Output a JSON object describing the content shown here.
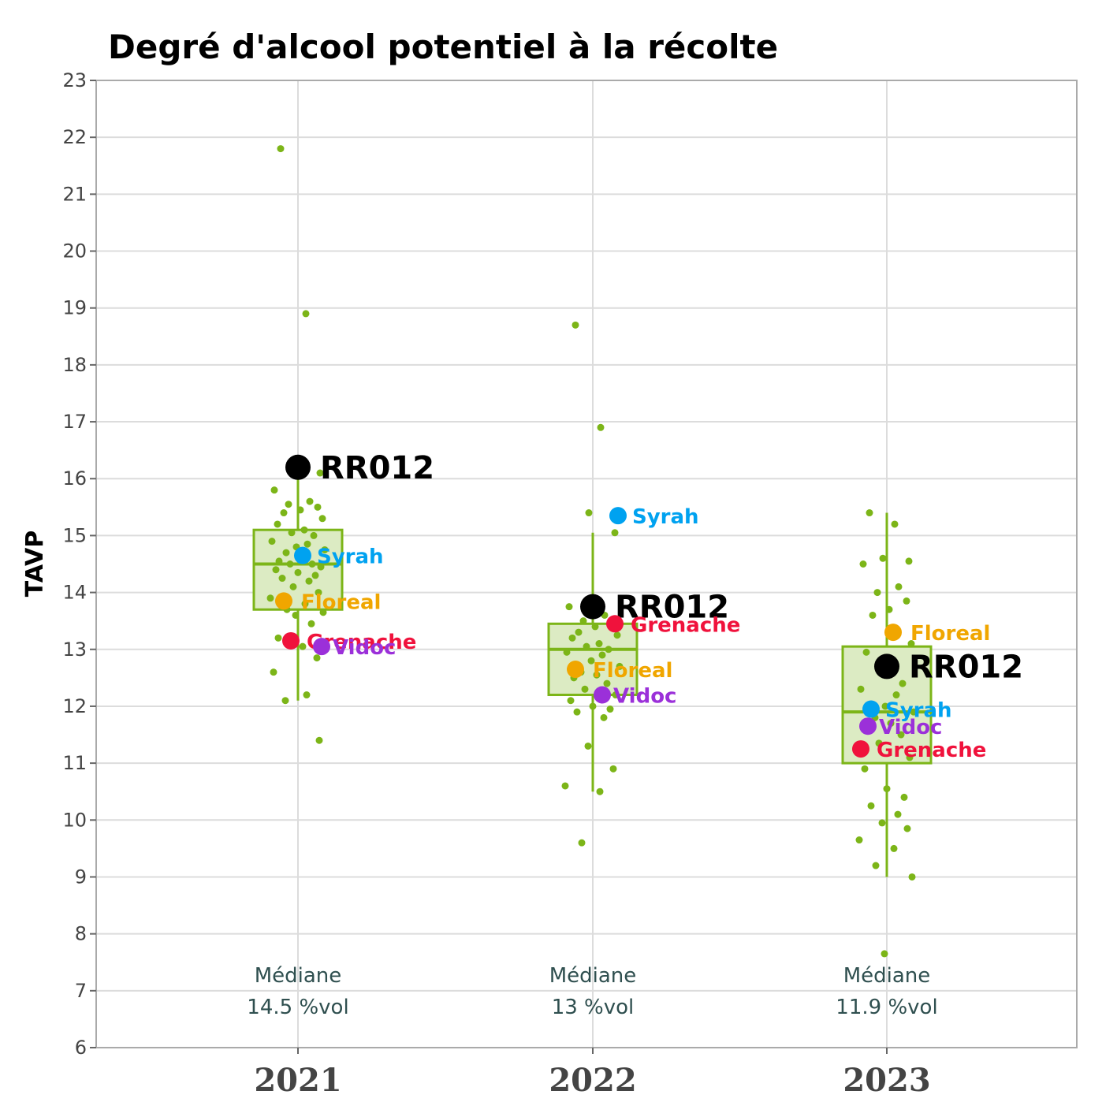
{
  "chart_data": {
    "type": "box",
    "title": "Degré d'alcool potentiel à la récolte",
    "ylabel": "TAVP",
    "xlabel": "",
    "ylim": [
      6,
      23
    ],
    "yticks": [
      "6",
      "7",
      "8",
      "9",
      "10",
      "11",
      "12",
      "13",
      "14",
      "15",
      "16",
      "17",
      "18",
      "19",
      "20",
      "21",
      "22",
      "23"
    ],
    "grid": true,
    "categories": [
      "2021",
      "2022",
      "2023"
    ],
    "median_label": "Médiane",
    "boxes": [
      {
        "category": "2021",
        "q1": 13.7,
        "median": 14.5,
        "q3": 15.1,
        "whisker_low": 12.1,
        "whisker_high": 16.1,
        "median_text": "14.5 %vol"
      },
      {
        "category": "2022",
        "q1": 12.2,
        "median": 13.0,
        "q3": 13.45,
        "whisker_low": 10.5,
        "whisker_high": 15.05,
        "median_text": "13 %vol"
      },
      {
        "category": "2023",
        "q1": 11.0,
        "median": 11.9,
        "q3": 13.05,
        "whisker_low": 9.0,
        "whisker_high": 15.4,
        "median_text": "11.9 %vol"
      }
    ],
    "points": [
      {
        "category": "2021",
        "values": [
          21.8,
          18.9,
          16.3,
          16.1,
          15.8,
          15.6,
          15.55,
          15.5,
          15.45,
          15.4,
          15.3,
          15.2,
          15.1,
          15.05,
          15.0,
          14.9,
          14.85,
          14.8,
          14.75,
          14.7,
          14.6,
          14.55,
          14.5,
          14.5,
          14.45,
          14.4,
          14.35,
          14.3,
          14.25,
          14.2,
          14.1,
          14.0,
          13.9,
          13.8,
          13.7,
          13.65,
          13.6,
          13.45,
          13.2,
          13.05,
          12.85,
          12.6,
          12.2,
          12.1,
          11.4
        ]
      },
      {
        "category": "2022",
        "values": [
          18.7,
          16.9,
          15.4,
          15.05,
          13.75,
          13.6,
          13.5,
          13.45,
          13.4,
          13.3,
          13.25,
          13.2,
          13.1,
          13.05,
          13.0,
          12.95,
          12.9,
          12.8,
          12.7,
          12.6,
          12.55,
          12.5,
          12.4,
          12.3,
          12.2,
          12.1,
          12.0,
          11.95,
          11.9,
          11.8,
          11.3,
          10.9,
          10.6,
          10.5,
          9.6
        ]
      },
      {
        "category": "2023",
        "values": [
          15.4,
          15.2,
          14.6,
          14.55,
          14.5,
          14.1,
          14.0,
          13.85,
          13.7,
          13.6,
          13.1,
          12.95,
          12.7,
          12.6,
          12.4,
          12.3,
          12.2,
          12.0,
          11.9,
          11.8,
          11.7,
          11.6,
          11.5,
          11.35,
          11.1,
          10.9,
          10.55,
          10.4,
          10.25,
          10.1,
          9.95,
          9.85,
          9.65,
          9.5,
          9.2,
          9.0,
          7.65
        ]
      }
    ],
    "highlights": [
      {
        "name": "RR012",
        "color": "#000000",
        "values": {
          "2021": 16.2,
          "2022": 13.75,
          "2023": 12.7
        }
      },
      {
        "name": "Syrah",
        "color": "#00a2f0",
        "values": {
          "2021": 14.65,
          "2022": 15.35,
          "2023": 11.95
        }
      },
      {
        "name": "Floreal",
        "color": "#f0a600",
        "values": {
          "2021": 13.85,
          "2022": 12.65,
          "2023": 13.3
        }
      },
      {
        "name": "Grenache",
        "color": "#f0123c",
        "values": {
          "2021": 13.15,
          "2022": 13.45,
          "2023": 11.25
        }
      },
      {
        "name": "Vidoc",
        "color": "#9b30d9",
        "values": {
          "2021": 13.05,
          "2022": 12.2,
          "2023": 11.65
        }
      }
    ],
    "colors": {
      "box_stroke": "#7cb518",
      "box_fill": "#dcebc3",
      "points": "#7cb518",
      "median_text": "#2f4f4f",
      "grid": "#dcdcdc",
      "frame": "#aaaaaa"
    }
  }
}
